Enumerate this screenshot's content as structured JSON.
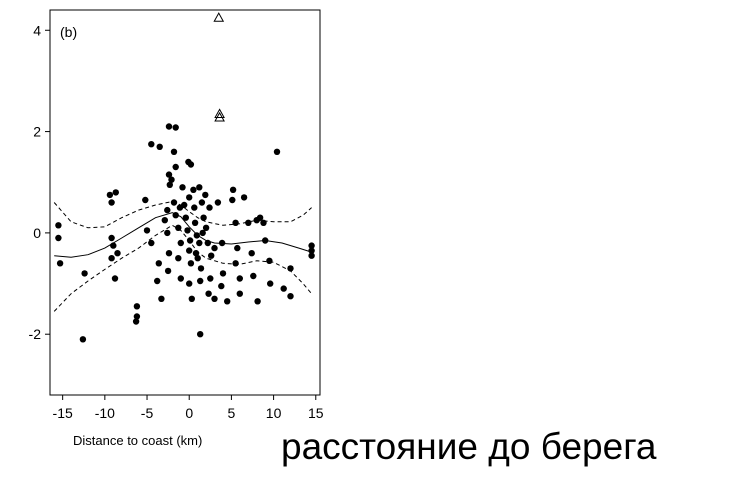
{
  "caption": "расстояние до берега",
  "chart_data": {
    "type": "scatter",
    "panel_label": "(b)",
    "xlabel": "Distance to coast (km)",
    "ylabel": "",
    "xlim": [
      -16.5,
      15.5
    ],
    "ylim": [
      -3.2,
      4.4
    ],
    "xticks": [
      -15,
      -10,
      -5,
      0,
      5,
      10,
      15
    ],
    "yticks": [
      -2,
      0,
      2,
      4
    ],
    "grid": false,
    "points": [
      [
        -15.5,
        0.15
      ],
      [
        -15.5,
        -0.1
      ],
      [
        -15.3,
        -0.6
      ],
      [
        -12.6,
        -2.1
      ],
      [
        -12.4,
        -0.8
      ],
      [
        -9.4,
        0.75
      ],
      [
        -9.2,
        0.6
      ],
      [
        -8.7,
        0.8
      ],
      [
        -9.2,
        -0.1
      ],
      [
        -9.0,
        -0.25
      ],
      [
        -9.2,
        -0.5
      ],
      [
        -8.5,
        -0.4
      ],
      [
        -8.8,
        -0.9
      ],
      [
        -6.2,
        -1.45
      ],
      [
        -6.2,
        -1.65
      ],
      [
        -6.3,
        -1.75
      ],
      [
        -5.2,
        0.65
      ],
      [
        -5.0,
        0.05
      ],
      [
        -4.5,
        -0.2
      ],
      [
        -4.5,
        1.75
      ],
      [
        -3.5,
        1.7
      ],
      [
        -3.6,
        -0.6
      ],
      [
        -3.8,
        -0.95
      ],
      [
        -3.3,
        -1.3
      ],
      [
        -2.4,
        2.1
      ],
      [
        -1.6,
        2.08
      ],
      [
        -2.4,
        1.15
      ],
      [
        -2.1,
        1.05
      ],
      [
        -1.8,
        1.6
      ],
      [
        -1.6,
        1.3
      ],
      [
        -2.6,
        0.45
      ],
      [
        -2.9,
        0.25
      ],
      [
        -2.6,
        0.0
      ],
      [
        -2.3,
        0.95
      ],
      [
        -1.8,
        0.6
      ],
      [
        -1.6,
        0.35
      ],
      [
        -1.3,
        0.1
      ],
      [
        -1.1,
        0.5
      ],
      [
        -1.0,
        -0.2
      ],
      [
        -1.3,
        -0.5
      ],
      [
        -2.4,
        -0.4
      ],
      [
        -2.5,
        -0.75
      ],
      [
        -1.0,
        -0.9
      ],
      [
        -0.8,
        0.9
      ],
      [
        -0.6,
        0.55
      ],
      [
        -0.4,
        0.3
      ],
      [
        -0.2,
        0.05
      ],
      [
        -0.1,
        1.4
      ],
      [
        0.2,
        1.35
      ],
      [
        0.0,
        0.7
      ],
      [
        0.1,
        -0.15
      ],
      [
        0.0,
        -0.35
      ],
      [
        0.2,
        -0.6
      ],
      [
        0.0,
        -1.0
      ],
      [
        0.3,
        -1.3
      ],
      [
        0.5,
        0.85
      ],
      [
        0.6,
        0.5
      ],
      [
        0.7,
        0.2
      ],
      [
        0.9,
        -0.05
      ],
      [
        1.2,
        -0.2
      ],
      [
        0.8,
        -0.4
      ],
      [
        1.0,
        -0.5
      ],
      [
        1.2,
        0.9
      ],
      [
        1.5,
        0.6
      ],
      [
        1.7,
        0.3
      ],
      [
        1.4,
        -0.7
      ],
      [
        1.3,
        -0.95
      ],
      [
        1.3,
        -2.0
      ],
      [
        1.6,
        0.0
      ],
      [
        2.0,
        0.1
      ],
      [
        2.2,
        -0.2
      ],
      [
        2.6,
        -0.45
      ],
      [
        2.4,
        0.5
      ],
      [
        1.9,
        0.75
      ],
      [
        3.0,
        -0.3
      ],
      [
        2.5,
        -0.9
      ],
      [
        2.3,
        -1.2
      ],
      [
        3.0,
        -1.3
      ],
      [
        3.4,
        0.6
      ],
      [
        3.9,
        -0.2
      ],
      [
        4.0,
        -0.8
      ],
      [
        3.8,
        -1.05
      ],
      [
        4.5,
        -1.35
      ],
      [
        5.2,
        0.85
      ],
      [
        5.1,
        0.65
      ],
      [
        5.5,
        0.2
      ],
      [
        5.7,
        -0.3
      ],
      [
        5.5,
        -0.6
      ],
      [
        6.0,
        -0.9
      ],
      [
        6.0,
        -1.2
      ],
      [
        6.5,
        0.7
      ],
      [
        7.0,
        0.2
      ],
      [
        7.4,
        -0.4
      ],
      [
        7.6,
        -0.85
      ],
      [
        8.1,
        -1.35
      ],
      [
        8.0,
        0.25
      ],
      [
        8.4,
        0.3
      ],
      [
        8.8,
        0.2
      ],
      [
        9.0,
        -0.15
      ],
      [
        9.5,
        -0.55
      ],
      [
        9.6,
        -1.0
      ],
      [
        10.4,
        1.6
      ],
      [
        11.2,
        -1.1
      ],
      [
        12.0,
        -1.25
      ],
      [
        12.0,
        -0.7
      ],
      [
        14.5,
        -0.25
      ],
      [
        14.5,
        -0.35
      ],
      [
        14.5,
        -0.45
      ]
    ],
    "outliers": [
      [
        3.5,
        4.25
      ],
      [
        3.6,
        2.35
      ],
      [
        3.6,
        2.28
      ]
    ],
    "fit": [
      [
        -16.0,
        -0.45
      ],
      [
        -14.0,
        -0.48
      ],
      [
        -12.0,
        -0.43
      ],
      [
        -10.0,
        -0.3
      ],
      [
        -8.0,
        -0.1
      ],
      [
        -6.0,
        0.1
      ],
      [
        -4.0,
        0.3
      ],
      [
        -2.0,
        0.4
      ],
      [
        -1.0,
        0.32
      ],
      [
        0.0,
        0.12
      ],
      [
        1.0,
        -0.05
      ],
      [
        2.0,
        -0.15
      ],
      [
        3.0,
        -0.2
      ],
      [
        5.0,
        -0.22
      ],
      [
        7.0,
        -0.18
      ],
      [
        9.0,
        -0.15
      ],
      [
        11.0,
        -0.2
      ],
      [
        13.0,
        -0.3
      ],
      [
        14.5,
        -0.38
      ]
    ],
    "band_upper": [
      [
        -16.0,
        0.6
      ],
      [
        -14.0,
        0.22
      ],
      [
        -12.0,
        0.1
      ],
      [
        -10.0,
        0.12
      ],
      [
        -8.0,
        0.3
      ],
      [
        -6.0,
        0.45
      ],
      [
        -4.0,
        0.55
      ],
      [
        -2.0,
        0.62
      ],
      [
        -1.0,
        0.55
      ],
      [
        0.0,
        0.42
      ],
      [
        1.0,
        0.3
      ],
      [
        2.0,
        0.22
      ],
      [
        4.0,
        0.15
      ],
      [
        6.0,
        0.18
      ],
      [
        8.0,
        0.25
      ],
      [
        10.0,
        0.22
      ],
      [
        12.0,
        0.22
      ],
      [
        13.5,
        0.35
      ],
      [
        14.5,
        0.5
      ]
    ],
    "band_lower": [
      [
        -16.0,
        -1.55
      ],
      [
        -14.0,
        -1.2
      ],
      [
        -12.0,
        -0.95
      ],
      [
        -10.0,
        -0.72
      ],
      [
        -8.0,
        -0.5
      ],
      [
        -6.0,
        -0.3
      ],
      [
        -4.0,
        -0.05
      ],
      [
        -2.0,
        0.15
      ],
      [
        -1.0,
        0.05
      ],
      [
        0.0,
        -0.15
      ],
      [
        1.0,
        -0.38
      ],
      [
        2.0,
        -0.5
      ],
      [
        4.0,
        -0.6
      ],
      [
        6.0,
        -0.62
      ],
      [
        8.0,
        -0.55
      ],
      [
        10.0,
        -0.58
      ],
      [
        12.0,
        -0.75
      ],
      [
        13.5,
        -1.0
      ],
      [
        14.5,
        -1.2
      ]
    ]
  }
}
